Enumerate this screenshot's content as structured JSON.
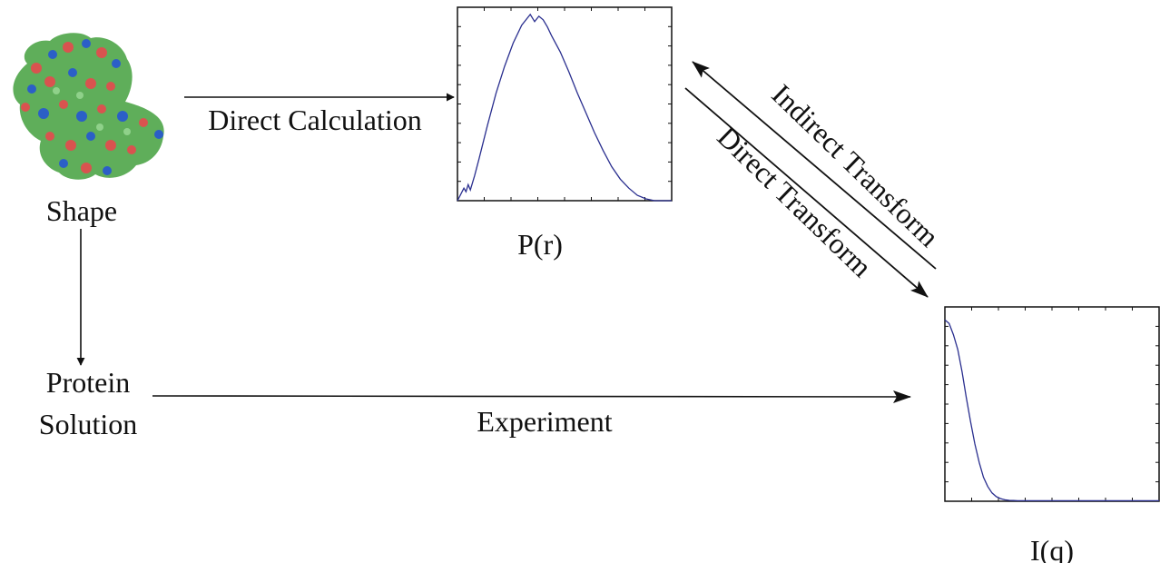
{
  "labels": {
    "shape": "Shape",
    "direct_calculation": "Direct Calculation",
    "pr": "P(r)",
    "indirect_transform": "Indirect Transform",
    "direct_transform": "Direct Transform",
    "protein": "Protein",
    "solution": "Solution",
    "experiment": "Experiment",
    "iq": "I(q)"
  },
  "colors": {
    "curve": "#2a2f8f",
    "text": "#111111",
    "protein_green": "#5fae5a",
    "protein_red": "#d9534f",
    "protein_blue": "#2b5fc7"
  },
  "icons": {
    "protein": "protein-surface-icon"
  },
  "chart_data": [
    {
      "type": "line",
      "title": "",
      "xlabel": "",
      "ylabel": "",
      "legend": "none",
      "grid": false,
      "xlim": [
        0,
        1
      ],
      "ylim": [
        0,
        1.08
      ],
      "series": [
        {
          "x": [
            0.0,
            0.03,
            0.04,
            0.05,
            0.06,
            0.08,
            0.1,
            0.14,
            0.18,
            0.22,
            0.26,
            0.3,
            0.34,
            0.36,
            0.38,
            0.4,
            0.42,
            0.44,
            0.48,
            0.52,
            0.56,
            0.6,
            0.64,
            0.68,
            0.72,
            0.76,
            0.8,
            0.84,
            0.88,
            0.92,
            0.96,
            1.0
          ],
          "y": [
            0.0,
            0.07,
            0.05,
            0.09,
            0.06,
            0.14,
            0.23,
            0.42,
            0.6,
            0.75,
            0.88,
            0.98,
            1.04,
            1.0,
            1.03,
            1.01,
            0.97,
            0.92,
            0.83,
            0.72,
            0.6,
            0.49,
            0.38,
            0.28,
            0.19,
            0.12,
            0.07,
            0.03,
            0.01,
            0.0,
            0.0,
            0.0
          ]
        }
      ]
    },
    {
      "type": "line",
      "title": "",
      "xlabel": "",
      "ylabel": "",
      "legend": "none",
      "grid": false,
      "xlim": [
        0,
        1
      ],
      "ylim": [
        0,
        1.05
      ],
      "series": [
        {
          "x": [
            0.0,
            0.02,
            0.04,
            0.06,
            0.08,
            0.1,
            0.12,
            0.14,
            0.16,
            0.18,
            0.2,
            0.22,
            0.24,
            0.26,
            0.28,
            0.3,
            0.32,
            0.34,
            0.36,
            0.4,
            0.5,
            0.6,
            0.8,
            1.0
          ],
          "y": [
            0.98,
            0.96,
            0.9,
            0.82,
            0.7,
            0.56,
            0.43,
            0.31,
            0.21,
            0.13,
            0.08,
            0.045,
            0.025,
            0.014,
            0.008,
            0.005,
            0.004,
            0.003,
            0.003,
            0.003,
            0.003,
            0.003,
            0.003,
            0.003
          ]
        }
      ]
    }
  ]
}
